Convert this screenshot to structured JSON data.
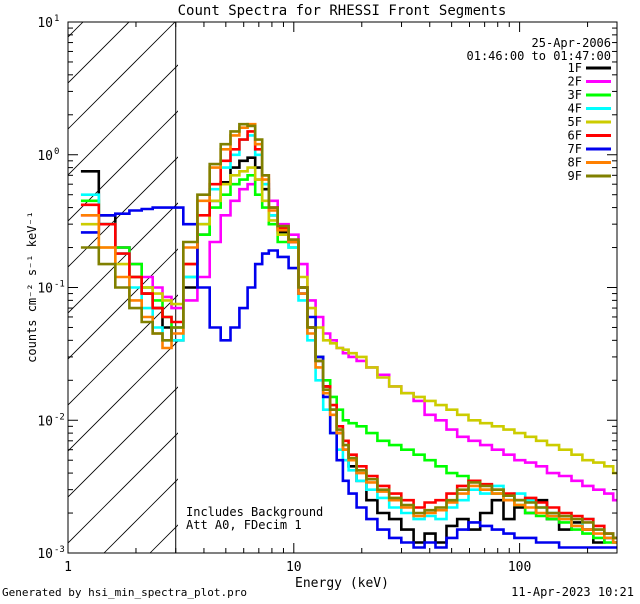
{
  "chart_data": {
    "type": "line",
    "title": "Count Spectra for RHESSI Front Segments",
    "xlabel": "Energy (keV)",
    "ylabel": "counts cm⁻² s⁻¹ keV⁻¹",
    "x_scale": "log",
    "y_scale": "log",
    "xlim": [
      1,
      270
    ],
    "ylim": [
      0.001,
      10
    ],
    "x_ticks": [
      {
        "value": 1,
        "label": "1"
      },
      {
        "value": 10,
        "label": "10"
      },
      {
        "value": 100,
        "label": "100"
      }
    ],
    "y_ticks": [
      {
        "value": 10,
        "base": "10",
        "exp": "1"
      },
      {
        "value": 1,
        "base": "10",
        "exp": "0"
      },
      {
        "value": 0.1,
        "base": "10",
        "exp": "-1"
      },
      {
        "value": 0.01,
        "base": "10",
        "exp": "-2"
      },
      {
        "value": 0.001,
        "base": "10",
        "exp": "-3"
      }
    ],
    "date_label": "25-Apr-2006",
    "time_label": "01:46:00 to 01:47:00",
    "annotations": [
      "Includes Background",
      "Att A0, FDecim 1"
    ],
    "hatched_region_kev": [
      1,
      3
    ],
    "legend_position": "top-right",
    "series": [
      {
        "name": "1F",
        "color": "#000000",
        "x": [
          1.25,
          1.5,
          1.75,
          2.0,
          2.25,
          2.5,
          2.75,
          3.0,
          3.5,
          4.0,
          4.5,
          5.0,
          5.5,
          6.0,
          6.5,
          7.0,
          7.5,
          8.0,
          9.0,
          10.0,
          11.0,
          12.0,
          13.0,
          14.0,
          15.0,
          16.0,
          17.0,
          18.0,
          20.0,
          22.0,
          25.0,
          28.0,
          32.0,
          36.0,
          40.0,
          45.0,
          50.0,
          56.0,
          63.0,
          71.0,
          80.0,
          90.0,
          100.0,
          112.0,
          125.0,
          140.0,
          160.0,
          180.0,
          200.0,
          225.0,
          250.0,
          270.0
        ],
        "values": [
          0.75,
          0.35,
          0.2,
          0.12,
          0.09,
          0.07,
          0.05,
          0.04,
          0.1,
          0.25,
          0.45,
          0.62,
          0.8,
          0.9,
          0.95,
          0.8,
          0.55,
          0.35,
          0.26,
          0.22,
          0.1,
          0.05,
          0.03,
          0.018,
          0.012,
          0.008,
          0.006,
          0.0045,
          0.0035,
          0.0025,
          0.002,
          0.0018,
          0.0015,
          0.0012,
          0.0014,
          0.0012,
          0.0016,
          0.0018,
          0.0015,
          0.002,
          0.0025,
          0.0018,
          0.0022,
          0.002,
          0.0025,
          0.0018,
          0.0015,
          0.0017,
          0.0015,
          0.0012,
          0.0013,
          0.0012
        ]
      },
      {
        "name": "2F",
        "color": "#ff00ff",
        "x": [
          1.25,
          1.5,
          1.75,
          2.0,
          2.25,
          2.5,
          2.75,
          3.0,
          3.5,
          4.0,
          4.5,
          5.0,
          5.5,
          6.0,
          6.5,
          7.0,
          7.5,
          8.0,
          9.0,
          10.0,
          11.0,
          12.0,
          13.0,
          14.0,
          15.0,
          16.0,
          17.0,
          18.0,
          20.0,
          22.0,
          25.0,
          28.0,
          32.0,
          36.0,
          40.0,
          45.0,
          50.0,
          56.0,
          63.0,
          71.0,
          80.0,
          90.0,
          100.0,
          112.0,
          125.0,
          140.0,
          160.0,
          180.0,
          200.0,
          225.0,
          250.0,
          270.0
        ],
        "values": [
          0.35,
          0.3,
          0.2,
          0.15,
          0.12,
          0.1,
          0.085,
          0.07,
          0.08,
          0.12,
          0.22,
          0.35,
          0.45,
          0.55,
          0.6,
          0.65,
          0.6,
          0.45,
          0.3,
          0.25,
          0.15,
          0.08,
          0.06,
          0.045,
          0.04,
          0.035,
          0.032,
          0.03,
          0.028,
          0.025,
          0.022,
          0.018,
          0.016,
          0.014,
          0.011,
          0.01,
          0.0085,
          0.0075,
          0.007,
          0.0065,
          0.006,
          0.0055,
          0.005,
          0.0048,
          0.0045,
          0.004,
          0.0038,
          0.0035,
          0.0032,
          0.003,
          0.0028,
          0.0025
        ]
      },
      {
        "name": "3F",
        "color": "#00ff00",
        "x": [
          1.25,
          1.5,
          1.75,
          2.0,
          2.25,
          2.5,
          2.75,
          3.0,
          3.5,
          4.0,
          4.5,
          5.0,
          5.5,
          6.0,
          6.5,
          7.0,
          7.5,
          8.0,
          9.0,
          10.0,
          11.0,
          12.0,
          13.0,
          14.0,
          15.0,
          16.0,
          17.0,
          18.0,
          20.0,
          22.0,
          25.0,
          28.0,
          32.0,
          36.0,
          40.0,
          45.0,
          50.0,
          56.0,
          63.0,
          71.0,
          80.0,
          90.0,
          100.0,
          112.0,
          125.0,
          140.0,
          160.0,
          180.0,
          200.0,
          225.0,
          250.0,
          270.0
        ],
        "values": [
          0.45,
          0.3,
          0.2,
          0.15,
          0.1,
          0.08,
          0.06,
          0.05,
          0.12,
          0.25,
          0.4,
          0.5,
          0.6,
          0.65,
          0.7,
          0.5,
          0.4,
          0.3,
          0.22,
          0.2,
          0.1,
          0.05,
          0.03,
          0.02,
          0.015,
          0.012,
          0.01,
          0.0095,
          0.009,
          0.008,
          0.007,
          0.0065,
          0.006,
          0.0055,
          0.005,
          0.0045,
          0.004,
          0.0038,
          0.0035,
          0.003,
          0.0028,
          0.0025,
          0.0023,
          0.002,
          0.0019,
          0.0018,
          0.0017,
          0.0015,
          0.0014,
          0.0013,
          0.0012,
          0.0012
        ]
      },
      {
        "name": "4F",
        "color": "#00ffff",
        "x": [
          1.25,
          1.5,
          1.75,
          2.0,
          2.25,
          2.5,
          2.75,
          3.0,
          3.5,
          4.0,
          4.5,
          5.0,
          5.5,
          6.0,
          6.5,
          7.0,
          7.5,
          8.0,
          9.0,
          10.0,
          11.0,
          12.0,
          13.0,
          14.0,
          15.0,
          16.0,
          17.0,
          18.0,
          20.0,
          22.0,
          25.0,
          28.0,
          32.0,
          36.0,
          40.0,
          45.0,
          50.0,
          56.0,
          63.0,
          71.0,
          80.0,
          90.0,
          100.0,
          112.0,
          125.0,
          140.0,
          160.0,
          180.0,
          200.0,
          225.0,
          250.0,
          270.0
        ],
        "values": [
          0.5,
          0.3,
          0.18,
          0.1,
          0.07,
          0.05,
          0.04,
          0.04,
          0.12,
          0.3,
          0.55,
          0.8,
          1.0,
          1.3,
          1.4,
          1.0,
          0.6,
          0.35,
          0.25,
          0.2,
          0.08,
          0.04,
          0.02,
          0.012,
          0.008,
          0.006,
          0.005,
          0.0042,
          0.0035,
          0.003,
          0.0026,
          0.0022,
          0.002,
          0.0018,
          0.0019,
          0.0018,
          0.0022,
          0.0025,
          0.003,
          0.0028,
          0.0032,
          0.0025,
          0.0028,
          0.0025,
          0.0022,
          0.002,
          0.0018,
          0.0016,
          0.0018,
          0.0015,
          0.0013,
          0.0012
        ]
      },
      {
        "name": "5F",
        "color": "#cccc00",
        "x": [
          1.25,
          1.5,
          1.75,
          2.0,
          2.25,
          2.5,
          2.75,
          3.0,
          3.5,
          4.0,
          4.5,
          5.0,
          5.5,
          6.0,
          6.5,
          7.0,
          7.5,
          8.0,
          9.0,
          10.0,
          11.0,
          12.0,
          13.0,
          14.0,
          15.0,
          16.0,
          17.0,
          18.0,
          20.0,
          22.0,
          25.0,
          28.0,
          32.0,
          36.0,
          40.0,
          45.0,
          50.0,
          56.0,
          63.0,
          71.0,
          80.0,
          90.0,
          100.0,
          112.0,
          125.0,
          140.0,
          160.0,
          180.0,
          200.0,
          225.0,
          250.0,
          270.0
        ],
        "values": [
          0.3,
          0.2,
          0.15,
          0.12,
          0.1,
          0.09,
          0.08,
          0.075,
          0.15,
          0.3,
          0.45,
          0.6,
          0.7,
          0.75,
          0.8,
          0.65,
          0.45,
          0.32,
          0.25,
          0.22,
          0.12,
          0.07,
          0.05,
          0.04,
          0.038,
          0.035,
          0.034,
          0.032,
          0.03,
          0.025,
          0.021,
          0.018,
          0.016,
          0.015,
          0.014,
          0.013,
          0.012,
          0.011,
          0.01,
          0.0095,
          0.009,
          0.0085,
          0.008,
          0.0075,
          0.007,
          0.0065,
          0.006,
          0.0055,
          0.005,
          0.0048,
          0.0045,
          0.004
        ]
      },
      {
        "name": "6F",
        "color": "#ff0000",
        "x": [
          1.25,
          1.5,
          1.75,
          2.0,
          2.25,
          2.5,
          2.75,
          3.0,
          3.5,
          4.0,
          4.5,
          5.0,
          5.5,
          6.0,
          6.5,
          7.0,
          7.5,
          8.0,
          9.0,
          10.0,
          11.0,
          12.0,
          13.0,
          14.0,
          15.0,
          16.0,
          17.0,
          18.0,
          20.0,
          22.0,
          25.0,
          28.0,
          32.0,
          36.0,
          40.0,
          45.0,
          50.0,
          56.0,
          63.0,
          71.0,
          80.0,
          90.0,
          100.0,
          112.0,
          125.0,
          140.0,
          160.0,
          180.0,
          200.0,
          225.0,
          250.0,
          270.0
        ],
        "values": [
          0.42,
          0.3,
          0.18,
          0.12,
          0.09,
          0.07,
          0.06,
          0.055,
          0.15,
          0.35,
          0.6,
          0.9,
          1.1,
          1.3,
          1.5,
          1.1,
          0.7,
          0.4,
          0.28,
          0.22,
          0.1,
          0.05,
          0.028,
          0.018,
          0.013,
          0.009,
          0.007,
          0.0055,
          0.0045,
          0.0038,
          0.0032,
          0.0028,
          0.0025,
          0.0022,
          0.0024,
          0.0025,
          0.0028,
          0.0032,
          0.0035,
          0.0033,
          0.003,
          0.0028,
          0.0025,
          0.0026,
          0.0024,
          0.0022,
          0.002,
          0.0019,
          0.0018,
          0.0016,
          0.0014,
          0.0013
        ]
      },
      {
        "name": "7F",
        "color": "#0000ee",
        "x": [
          1.25,
          1.5,
          1.75,
          2.0,
          2.25,
          2.5,
          2.75,
          3.0,
          3.5,
          4.0,
          4.5,
          5.0,
          5.5,
          6.0,
          6.5,
          7.0,
          7.5,
          8.0,
          9.0,
          10.0,
          11.0,
          12.0,
          13.0,
          14.0,
          15.0,
          16.0,
          17.0,
          18.0,
          20.0,
          22.0,
          25.0,
          28.0,
          32.0,
          36.0,
          40.0,
          45.0,
          50.0,
          56.0,
          63.0,
          71.0,
          80.0,
          90.0,
          100.0,
          112.0,
          125.0,
          140.0,
          160.0,
          180.0,
          200.0,
          225.0,
          250.0,
          270.0
        ],
        "values": [
          0.26,
          0.35,
          0.36,
          0.38,
          0.39,
          0.4,
          0.4,
          0.4,
          0.3,
          0.1,
          0.05,
          0.04,
          0.05,
          0.07,
          0.1,
          0.15,
          0.18,
          0.19,
          0.17,
          0.14,
          0.09,
          0.06,
          0.03,
          0.015,
          0.008,
          0.005,
          0.0035,
          0.0028,
          0.0022,
          0.0018,
          0.0015,
          0.0013,
          0.0012,
          0.0011,
          0.0012,
          0.0011,
          0.0013,
          0.0015,
          0.0017,
          0.0016,
          0.0015,
          0.0014,
          0.0013,
          0.0013,
          0.0012,
          0.0012,
          0.0011,
          0.0011,
          0.0011,
          0.0011,
          0.0011,
          0.0011
        ]
      },
      {
        "name": "8F",
        "color": "#ff8000",
        "x": [
          1.25,
          1.5,
          1.75,
          2.0,
          2.25,
          2.5,
          2.75,
          3.0,
          3.5,
          4.0,
          4.5,
          5.0,
          5.5,
          6.0,
          6.5,
          7.0,
          7.5,
          8.0,
          9.0,
          10.0,
          11.0,
          12.0,
          13.0,
          14.0,
          15.0,
          16.0,
          17.0,
          18.0,
          20.0,
          22.0,
          25.0,
          28.0,
          32.0,
          36.0,
          40.0,
          45.0,
          50.0,
          56.0,
          63.0,
          71.0,
          80.0,
          90.0,
          100.0,
          112.0,
          125.0,
          140.0,
          160.0,
          180.0,
          200.0,
          225.0,
          250.0,
          270.0
        ],
        "values": [
          0.35,
          0.2,
          0.12,
          0.08,
          0.06,
          0.045,
          0.035,
          0.045,
          0.2,
          0.45,
          0.8,
          1.1,
          1.4,
          1.6,
          1.7,
          1.2,
          0.65,
          0.38,
          0.27,
          0.22,
          0.09,
          0.045,
          0.025,
          0.016,
          0.011,
          0.008,
          0.006,
          0.005,
          0.004,
          0.0034,
          0.0029,
          0.0025,
          0.0022,
          0.0019,
          0.002,
          0.0021,
          0.0024,
          0.0028,
          0.0032,
          0.003,
          0.0028,
          0.0025,
          0.0023,
          0.0022,
          0.002,
          0.0019,
          0.0018,
          0.0016,
          0.0015,
          0.0014,
          0.0013,
          0.0012
        ]
      },
      {
        "name": "9F",
        "color": "#808000",
        "x": [
          1.25,
          1.5,
          1.75,
          2.0,
          2.25,
          2.5,
          2.75,
          3.0,
          3.5,
          4.0,
          4.5,
          5.0,
          5.5,
          6.0,
          6.5,
          7.0,
          7.5,
          8.0,
          9.0,
          10.0,
          11.0,
          12.0,
          13.0,
          14.0,
          15.0,
          16.0,
          17.0,
          18.0,
          20.0,
          22.0,
          25.0,
          28.0,
          32.0,
          36.0,
          40.0,
          45.0,
          50.0,
          56.0,
          63.0,
          71.0,
          80.0,
          90.0,
          100.0,
          112.0,
          125.0,
          140.0,
          160.0,
          180.0,
          200.0,
          225.0,
          250.0,
          270.0
        ],
        "values": [
          0.2,
          0.15,
          0.1,
          0.07,
          0.055,
          0.045,
          0.04,
          0.05,
          0.22,
          0.5,
          0.85,
          1.2,
          1.5,
          1.7,
          1.65,
          1.3,
          0.7,
          0.4,
          0.29,
          0.23,
          0.1,
          0.05,
          0.028,
          0.017,
          0.012,
          0.0085,
          0.0065,
          0.0052,
          0.0042,
          0.0036,
          0.003,
          0.0026,
          0.0023,
          0.002,
          0.0021,
          0.0022,
          0.0025,
          0.003,
          0.0034,
          0.0032,
          0.003,
          0.0027,
          0.0025,
          0.0024,
          0.0022,
          0.002,
          0.0019,
          0.0018,
          0.0017,
          0.0015,
          0.0014,
          0.0013
        ]
      }
    ]
  },
  "footer": {
    "generator": "Generated by hsi_min_spectra_plot.pro",
    "timestamp": "11-Apr-2023 10:21"
  }
}
